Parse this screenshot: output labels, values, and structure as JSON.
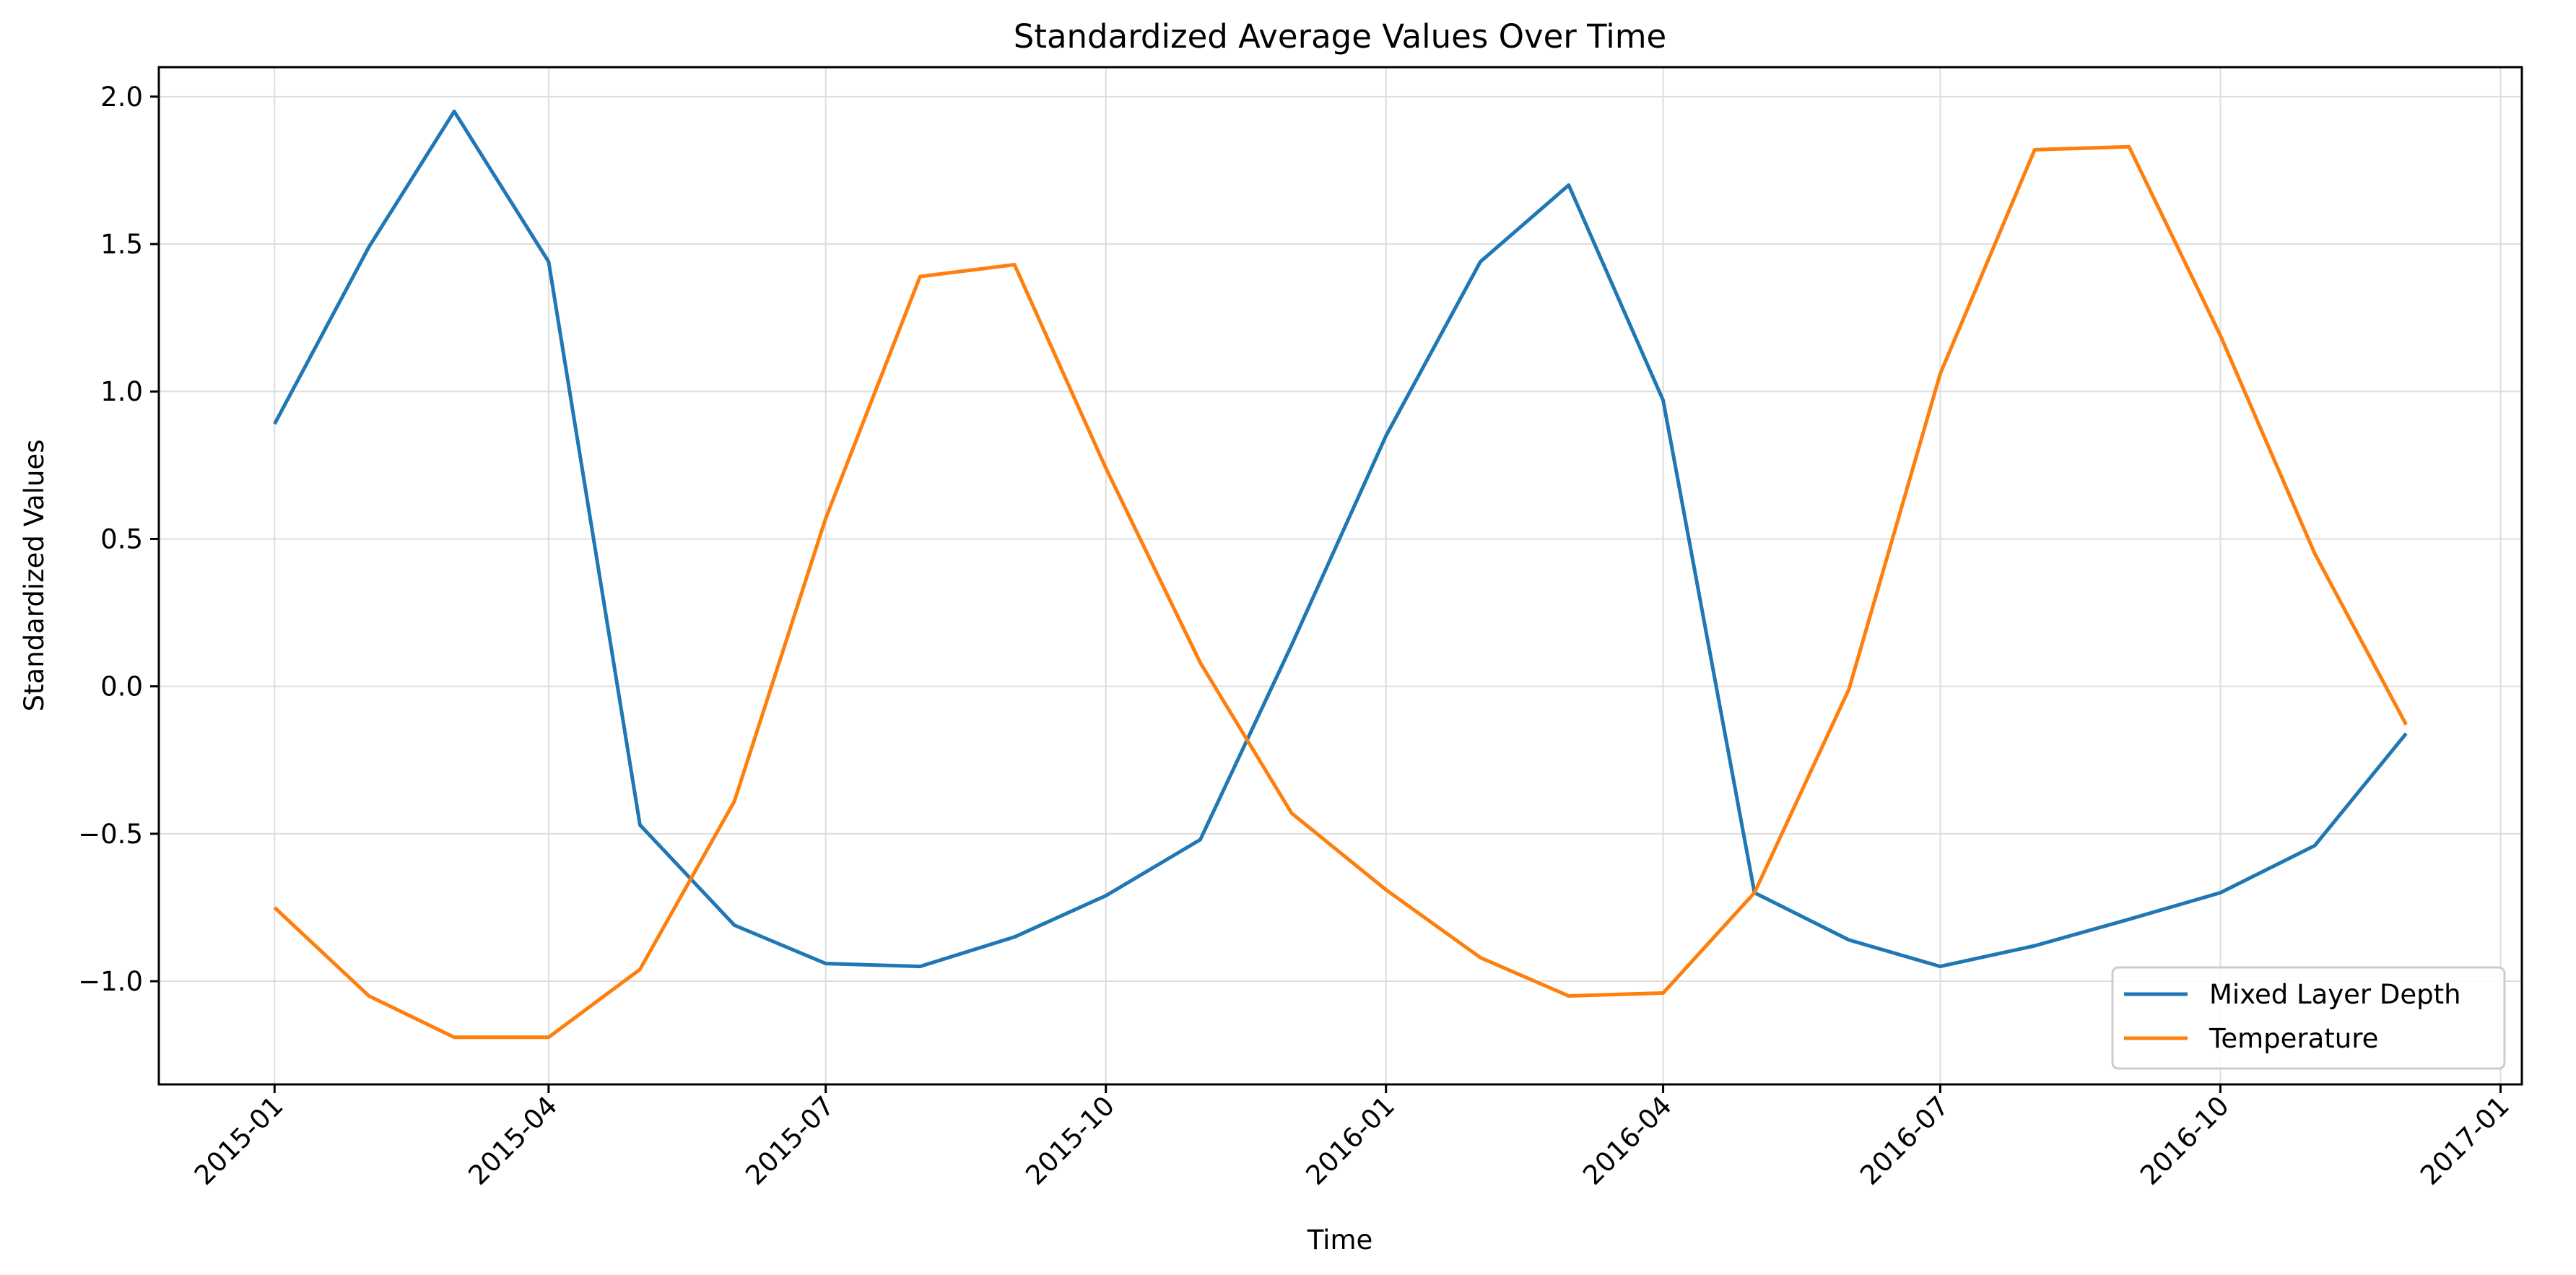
{
  "chart_data": {
    "type": "line",
    "title": "Standardized Average Values Over Time",
    "xlabel": "Time",
    "ylabel": "Standardized Values",
    "x": [
      "2015-01",
      "2015-02",
      "2015-03",
      "2015-04",
      "2015-05",
      "2015-06",
      "2015-07",
      "2015-08",
      "2015-09",
      "2015-10",
      "2015-11",
      "2015-12",
      "2016-01",
      "2016-02",
      "2016-03",
      "2016-04",
      "2016-05",
      "2016-06",
      "2016-07",
      "2016-08",
      "2016-09",
      "2016-10",
      "2016-11",
      "2016-12"
    ],
    "xlim": [
      "2014-11-24",
      "2017-01-08"
    ],
    "xticks": [
      "2015-01",
      "2015-04",
      "2015-07",
      "2015-10",
      "2016-01",
      "2016-04",
      "2016-07",
      "2016-10",
      "2017-01"
    ],
    "ylim": [
      -1.35,
      2.1
    ],
    "yticks": [
      2.0,
      1.5,
      1.0,
      0.5,
      0.0,
      -0.5,
      -1.0
    ],
    "ytick_labels": [
      "2.0",
      "1.5",
      "1.0",
      "0.5",
      "0.0",
      "−0.5",
      "−1.0"
    ],
    "grid": true,
    "legend_position": "lower-right",
    "series": [
      {
        "name": "Mixed Layer Depth",
        "color": "#1f77b4",
        "values": [
          0.89,
          1.49,
          1.95,
          1.44,
          -0.47,
          -0.81,
          -0.94,
          -0.95,
          -0.85,
          -0.71,
          -0.52,
          0.14,
          0.85,
          1.44,
          1.7,
          0.97,
          -0.7,
          -0.86,
          -0.95,
          -0.88,
          -0.79,
          -0.7,
          -0.54,
          -0.16
        ]
      },
      {
        "name": "Temperature",
        "color": "#ff7f0e",
        "values": [
          -0.75,
          -1.05,
          -1.19,
          -1.19,
          -0.96,
          -0.39,
          0.57,
          1.39,
          1.43,
          0.74,
          0.08,
          -0.43,
          -0.69,
          -0.92,
          -1.05,
          -1.04,
          -0.7,
          -0.01,
          1.06,
          1.82,
          1.83,
          1.19,
          0.45,
          -0.13
        ]
      }
    ]
  }
}
